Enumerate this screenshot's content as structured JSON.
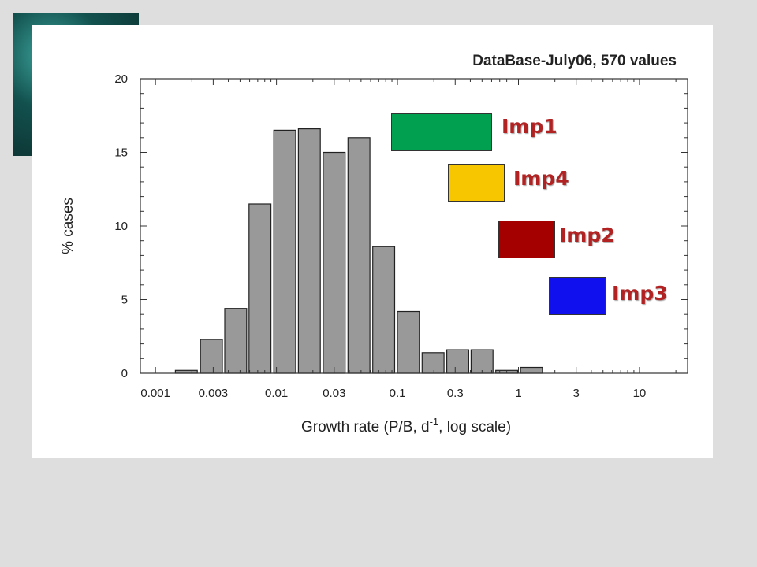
{
  "chart_data": {
    "type": "bar",
    "title": "DataBase-July06, 570 values",
    "xlabel": "Growth rate (P/B, d",
    "xlabel_sup": "-1",
    "xlabel_tail": ", log scale)",
    "ylabel": "% cases",
    "x_scale": "log",
    "xlim": [
      0.00075,
      25
    ],
    "ylim": [
      0,
      20
    ],
    "x_ticks": [
      {
        "value": 0.001,
        "label": "0.001"
      },
      {
        "value": 0.003,
        "label": "0.003"
      },
      {
        "value": 0.01,
        "label": "0.01"
      },
      {
        "value": 0.03,
        "label": "0.03"
      },
      {
        "value": 0.1,
        "label": "0.1"
      },
      {
        "value": 0.3,
        "label": "0.3"
      },
      {
        "value": 1,
        "label": "1"
      },
      {
        "value": 3,
        "label": "3"
      },
      {
        "value": 10,
        "label": "10"
      }
    ],
    "y_ticks": [
      {
        "value": 0,
        "label": "0"
      },
      {
        "value": 5,
        "label": "5"
      },
      {
        "value": 10,
        "label": "10"
      },
      {
        "value": 15,
        "label": "15"
      },
      {
        "value": 20,
        "label": "20"
      }
    ],
    "bars": [
      {
        "center": 0.0018,
        "value": 0.2
      },
      {
        "center": 0.0029,
        "value": 2.3
      },
      {
        "center": 0.0046,
        "value": 4.4
      },
      {
        "center": 0.0073,
        "value": 11.5
      },
      {
        "center": 0.0117,
        "value": 16.5
      },
      {
        "center": 0.0187,
        "value": 16.6
      },
      {
        "center": 0.03,
        "value": 15.0
      },
      {
        "center": 0.048,
        "value": 16.0
      },
      {
        "center": 0.077,
        "value": 8.6
      },
      {
        "center": 0.123,
        "value": 4.2
      },
      {
        "center": 0.197,
        "value": 1.4
      },
      {
        "center": 0.315,
        "value": 1.6
      },
      {
        "center": 0.5,
        "value": 1.6
      },
      {
        "center": 0.8,
        "value": 0.2
      },
      {
        "center": 1.28,
        "value": 0.4
      }
    ],
    "bar_color": "#999999",
    "grid": false,
    "legend": [
      {
        "label": "Imp1",
        "color": "#00a050"
      },
      {
        "label": "Imp4",
        "color": "#f7c600"
      },
      {
        "label": "Imp2",
        "color": "#a50000"
      },
      {
        "label": "Imp3",
        "color": "#1010ee"
      }
    ]
  }
}
